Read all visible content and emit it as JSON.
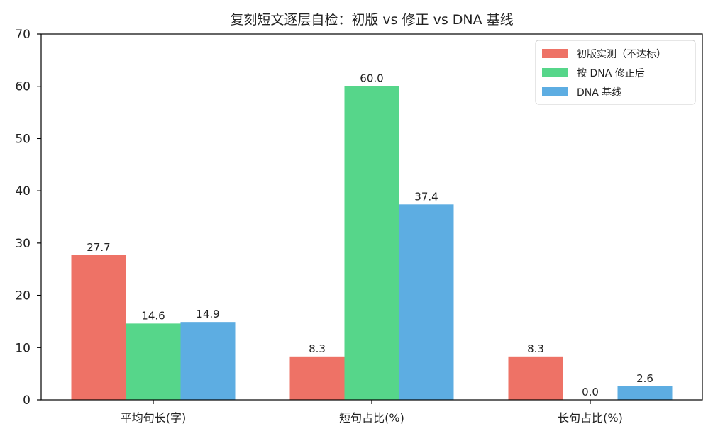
{
  "chart_data": {
    "type": "bar",
    "title": "复刻短文逐层自检：初版 vs 修正 vs DNA 基线",
    "xlabel": "",
    "ylabel": "",
    "categories": [
      "平均句长(字)",
      "短句占比(%)",
      "长句占比(%)"
    ],
    "series": [
      {
        "name": "初版实测（不达标）",
        "values": [
          27.7,
          8.3,
          8.3
        ],
        "value_labels": [
          "27.7",
          "8.3",
          "8.3"
        ],
        "color": "#ee7266"
      },
      {
        "name": "按 DNA 修正后",
        "values": [
          14.6,
          60.0,
          0.0
        ],
        "value_labels": [
          "14.6",
          "60.0",
          "0.0"
        ],
        "color": "#56d68a"
      },
      {
        "name": "DNA 基线",
        "values": [
          14.9,
          37.4,
          2.6
        ],
        "value_labels": [
          "14.9",
          "37.4",
          "2.6"
        ],
        "color": "#5dade2"
      }
    ],
    "ylim": [
      0,
      70
    ],
    "yticks": [
      "0",
      "10",
      "20",
      "30",
      "40",
      "50",
      "60",
      "70"
    ],
    "grid": false,
    "legend_position": "top-right"
  }
}
